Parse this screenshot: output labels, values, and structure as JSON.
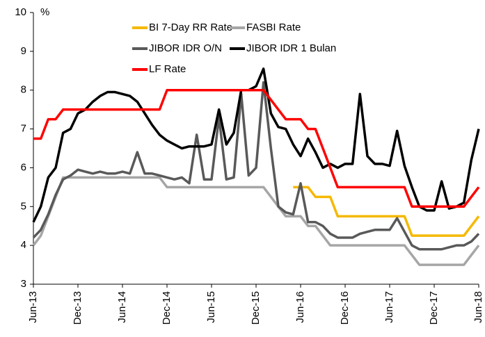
{
  "chart_data": {
    "type": "line",
    "ylabel": "%",
    "ylim": [
      3,
      10
    ],
    "yticks": [
      3,
      4,
      5,
      6,
      7,
      8,
      9,
      10
    ],
    "grid": false,
    "categories": [
      "Jun-13",
      null,
      null,
      null,
      null,
      null,
      "Dec-13",
      null,
      null,
      null,
      null,
      null,
      "Jun-14",
      null,
      null,
      null,
      null,
      null,
      "Dec-14",
      null,
      null,
      null,
      null,
      null,
      "Jun-15",
      null,
      null,
      null,
      null,
      null,
      "Dec-15",
      null,
      null,
      null,
      null,
      null,
      "Jun-16",
      null,
      null,
      null,
      null,
      null,
      "Dec-16",
      null,
      null,
      null,
      null,
      null,
      "Jun-17",
      null,
      null,
      null,
      null,
      null,
      "Dec-17",
      null,
      null,
      null,
      null,
      null,
      "Jun-18"
    ],
    "series": [
      {
        "name": "BI 7-Day RR Rate",
        "color": "#f5b800",
        "values": [
          null,
          null,
          null,
          null,
          null,
          null,
          null,
          null,
          null,
          null,
          null,
          null,
          null,
          null,
          null,
          null,
          null,
          null,
          null,
          null,
          null,
          null,
          null,
          null,
          null,
          null,
          null,
          null,
          null,
          null,
          null,
          null,
          null,
          null,
          null,
          5.5,
          5.5,
          5.5,
          5.25,
          5.25,
          5.25,
          4.75,
          4.75,
          4.75,
          4.75,
          4.75,
          4.75,
          4.75,
          4.75,
          4.75,
          4.75,
          4.25,
          4.25,
          4.25,
          4.25,
          4.25,
          4.25,
          4.25,
          4.25,
          4.5,
          4.75
        ]
      },
      {
        "name": "FASBI Rate",
        "color": "#a6a6a6",
        "values": [
          4,
          4.25,
          4.75,
          5.25,
          5.75,
          5.75,
          5.75,
          5.75,
          5.75,
          5.75,
          5.75,
          5.75,
          5.75,
          5.75,
          5.75,
          5.75,
          5.75,
          5.75,
          5.5,
          5.5,
          5.5,
          5.5,
          5.5,
          5.5,
          5.5,
          5.5,
          5.5,
          5.5,
          5.5,
          5.5,
          5.5,
          5.5,
          5.25,
          5,
          4.75,
          4.75,
          4.75,
          4.5,
          4.5,
          4.25,
          4,
          4,
          4,
          4,
          4,
          4,
          4,
          4,
          4,
          4,
          4,
          3.75,
          3.5,
          3.5,
          3.5,
          3.5,
          3.5,
          3.5,
          3.5,
          3.75,
          4
        ]
      },
      {
        "name": "JIBOR IDR O/N",
        "color": "#595959",
        "values": [
          4.2,
          4.4,
          4.8,
          5.3,
          5.7,
          5.8,
          5.95,
          5.9,
          5.85,
          5.9,
          5.85,
          5.85,
          5.9,
          5.85,
          6.4,
          5.85,
          5.85,
          5.8,
          5.75,
          5.7,
          5.75,
          5.6,
          6.85,
          5.7,
          5.7,
          7.3,
          5.7,
          5.75,
          7.9,
          5.8,
          6.0,
          8.2,
          6.5,
          5.0,
          4.85,
          4.8,
          5.6,
          4.6,
          4.6,
          4.5,
          4.3,
          4.2,
          4.2,
          4.2,
          4.3,
          4.35,
          4.4,
          4.4,
          4.4,
          4.7,
          4.35,
          4.0,
          3.9,
          3.9,
          3.9,
          3.9,
          3.95,
          4.0,
          4.0,
          4.1,
          4.3
        ]
      },
      {
        "name": "JIBOR IDR 1 Bulan",
        "color": "#000000",
        "values": [
          4.6,
          5.0,
          5.75,
          6.0,
          6.9,
          7.0,
          7.4,
          7.5,
          7.7,
          7.85,
          7.95,
          7.95,
          7.9,
          7.85,
          7.7,
          7.4,
          7.1,
          6.85,
          6.7,
          6.6,
          6.5,
          6.55,
          6.55,
          6.55,
          6.6,
          7.5,
          6.6,
          6.9,
          8.0,
          8.0,
          8.1,
          8.55,
          7.4,
          7.05,
          7.0,
          6.6,
          6.3,
          6.75,
          6.4,
          6.0,
          6.1,
          6.0,
          6.1,
          6.1,
          7.9,
          6.3,
          6.1,
          6.1,
          6.05,
          6.95,
          6.05,
          5.5,
          5.0,
          4.9,
          4.9,
          5.65,
          4.95,
          5.0,
          5.1,
          6.2,
          7.0
        ]
      },
      {
        "name": "LF Rate",
        "color": "#ff0000",
        "values": [
          6.75,
          6.75,
          7.25,
          7.25,
          7.5,
          7.5,
          7.5,
          7.5,
          7.5,
          7.5,
          7.5,
          7.5,
          7.5,
          7.5,
          7.5,
          7.5,
          7.5,
          7.5,
          8,
          8,
          8,
          8,
          8,
          8,
          8,
          8,
          8,
          8,
          8,
          8,
          8,
          8,
          7.75,
          7.5,
          7.25,
          7.25,
          7.25,
          7,
          7,
          6.5,
          6,
          5.5,
          5.5,
          5.5,
          5.5,
          5.5,
          5.5,
          5.5,
          5.5,
          5.5,
          5.5,
          5,
          5,
          5,
          5,
          5,
          5,
          5,
          5,
          5.25,
          5.5
        ]
      }
    ]
  }
}
